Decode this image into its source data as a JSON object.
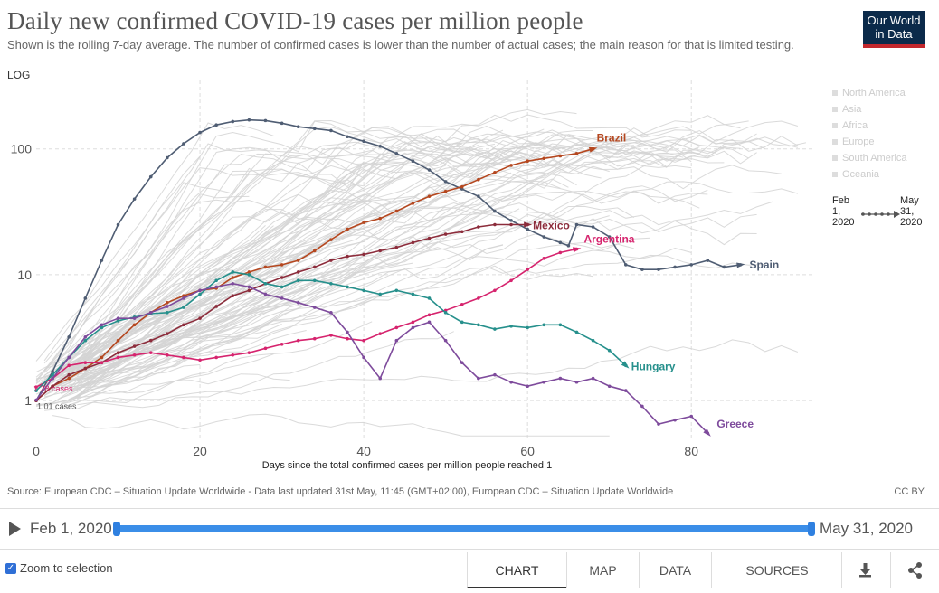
{
  "header": {
    "title": "Daily new confirmed COVID-19 cases per million people",
    "subtitle": "Shown is the rolling 7-day average. The number of confirmed cases is lower than the number of actual cases; the main reason for that is limited testing.",
    "logo_line1": "Our World",
    "logo_line2": "in Data"
  },
  "legend": {
    "continents": [
      "North America",
      "Asia",
      "Africa",
      "Europe",
      "South America",
      "Oceania"
    ],
    "timeline_start": [
      "Feb",
      "1,",
      "2020"
    ],
    "timeline_end": [
      "May",
      "31,",
      "2020"
    ]
  },
  "colors": {
    "Spain": "#4f5d73",
    "Brazil": "#b5471f",
    "Mexico": "#8c2c3b",
    "Argentina": "#d6246e",
    "Hungary": "#26908c",
    "Greece": "#7e4b9c",
    "Background": "#d4d4d4",
    "Accent": "#3b8ee8"
  },
  "chart_data": {
    "type": "line",
    "title": "Daily new confirmed COVID-19 cases per million people",
    "xlabel": "Days since the total confirmed cases per million people reached 1",
    "ylabel": "",
    "yscale_label": "LOG",
    "yscale": "log",
    "xlim": [
      0,
      95
    ],
    "ylim": [
      0.5,
      350
    ],
    "x_ticks": [
      0,
      20,
      40,
      60,
      80
    ],
    "y_ticks": [
      1,
      10,
      100
    ],
    "y_tick_labels": [
      "1",
      "10",
      "100"
    ],
    "annotations": [
      "1.28 cases",
      "1.01 cases"
    ],
    "series": [
      {
        "name": "Spain",
        "x": [
          0,
          2,
          4,
          6,
          8,
          10,
          12,
          14,
          16,
          18,
          20,
          22,
          24,
          26,
          28,
          30,
          32,
          34,
          36,
          38,
          40,
          42,
          44,
          46,
          48,
          50,
          52,
          54,
          56,
          58,
          60,
          62,
          64,
          65,
          66,
          68,
          70,
          72,
          74,
          76,
          78,
          80,
          82,
          84,
          86
        ],
        "y": [
          1.0,
          1.7,
          3.2,
          6.5,
          13,
          25,
          40,
          60,
          85,
          110,
          135,
          155,
          165,
          170,
          168,
          160,
          150,
          145,
          140,
          125,
          115,
          105,
          92,
          80,
          68,
          55,
          48,
          42,
          32,
          27,
          23,
          20,
          18,
          17,
          25,
          24,
          20,
          12,
          11,
          11,
          11.5,
          12,
          13,
          11.5,
          12
        ]
      },
      {
        "name": "Brazil",
        "x": [
          0,
          2,
          4,
          6,
          8,
          10,
          12,
          14,
          16,
          18,
          20,
          22,
          24,
          26,
          28,
          30,
          32,
          34,
          36,
          38,
          40,
          42,
          44,
          46,
          48,
          50,
          52,
          54,
          56,
          58,
          60,
          62,
          64,
          66,
          68
        ],
        "y": [
          1.0,
          1.3,
          1.5,
          1.8,
          2.2,
          3.0,
          4.0,
          5.0,
          6.0,
          6.8,
          7.5,
          7.8,
          9.5,
          10.5,
          11.5,
          12,
          13,
          15.5,
          19,
          23,
          26,
          28,
          32,
          37,
          42,
          46,
          50,
          57,
          65,
          74,
          80,
          84,
          88,
          92,
          100
        ]
      },
      {
        "name": "Mexico",
        "x": [
          0,
          2,
          4,
          6,
          8,
          10,
          12,
          14,
          16,
          18,
          20,
          22,
          24,
          26,
          28,
          30,
          32,
          34,
          36,
          38,
          40,
          42,
          44,
          46,
          48,
          50,
          52,
          54,
          56,
          58,
          60
        ],
        "y": [
          1.0,
          1.3,
          1.6,
          1.8,
          2.0,
          2.4,
          2.7,
          3.0,
          3.4,
          4.0,
          4.5,
          5.6,
          6.8,
          7.5,
          8.5,
          9.5,
          10.5,
          11.5,
          13,
          14,
          14.5,
          15.5,
          16.5,
          18,
          19.5,
          21,
          22,
          24,
          25,
          25,
          25
        ]
      },
      {
        "name": "Argentina",
        "x": [
          0,
          2,
          4,
          6,
          8,
          10,
          12,
          14,
          16,
          18,
          20,
          22,
          24,
          26,
          28,
          30,
          32,
          34,
          36,
          38,
          40,
          42,
          44,
          46,
          48,
          50,
          52,
          54,
          56,
          58,
          60,
          62,
          64,
          66
        ],
        "y": [
          1.28,
          1.5,
          1.9,
          2.0,
          2.0,
          2.2,
          2.3,
          2.4,
          2.3,
          2.2,
          2.1,
          2.2,
          2.3,
          2.4,
          2.6,
          2.8,
          3.0,
          3.1,
          3.3,
          3.1,
          3.0,
          3.4,
          3.8,
          4.2,
          4.8,
          5.2,
          5.8,
          6.5,
          7.5,
          9.0,
          11,
          13.5,
          15,
          16
        ]
      },
      {
        "name": "Hungary",
        "x": [
          0,
          2,
          4,
          6,
          8,
          10,
          12,
          14,
          16,
          18,
          20,
          22,
          24,
          26,
          28,
          30,
          32,
          34,
          36,
          38,
          40,
          42,
          44,
          46,
          48,
          50,
          52,
          54,
          56,
          58,
          60,
          62,
          64,
          66,
          68,
          70,
          72
        ],
        "y": [
          1.2,
          1.6,
          2.2,
          3.0,
          3.8,
          4.3,
          4.6,
          4.9,
          5.0,
          5.5,
          7.0,
          9.0,
          10.5,
          10,
          8.5,
          8.0,
          9.0,
          9.0,
          8.5,
          8.0,
          7.5,
          7.0,
          7.5,
          7.0,
          6.5,
          5.0,
          4.2,
          4.0,
          3.7,
          3.9,
          3.8,
          4.0,
          4.0,
          3.5,
          3.0,
          2.5,
          1.9
        ]
      },
      {
        "name": "Greece",
        "x": [
          0,
          2,
          4,
          6,
          8,
          10,
          12,
          14,
          16,
          18,
          20,
          22,
          24,
          26,
          28,
          30,
          32,
          34,
          36,
          38,
          40,
          42,
          44,
          46,
          48,
          50,
          52,
          54,
          56,
          58,
          60,
          62,
          64,
          66,
          68,
          70,
          72,
          74,
          76,
          78,
          80,
          82
        ],
        "y": [
          1.01,
          1.5,
          2.2,
          3.2,
          4.0,
          4.5,
          4.5,
          5.0,
          5.6,
          6.5,
          7.5,
          8.0,
          8.5,
          8.0,
          7.0,
          6.5,
          6.0,
          5.5,
          5.0,
          3.5,
          2.2,
          1.5,
          3.0,
          3.8,
          4.2,
          3.0,
          2.0,
          1.5,
          1.6,
          1.4,
          1.3,
          1.4,
          1.5,
          1.4,
          1.5,
          1.3,
          1.2,
          0.9,
          0.65,
          0.7,
          0.75,
          0.55
        ]
      }
    ]
  },
  "footer": {
    "source": "Source: European CDC – Situation Update Worldwide - Data last updated 31st May, 11:45 (GMT+02:00), European CDC – Situation Update Worldwide",
    "license": "CC BY"
  },
  "timeline": {
    "start_label": "Feb 1, 2020",
    "end_label": "May 31, 2020",
    "selected_fraction_start": 0.0,
    "selected_fraction_end": 1.0
  },
  "controls": {
    "zoom_label": "Zoom to selection",
    "zoom_checked": true,
    "tabs": [
      "CHART",
      "MAP",
      "DATA",
      "SOURCES"
    ],
    "active_tab": "CHART"
  }
}
